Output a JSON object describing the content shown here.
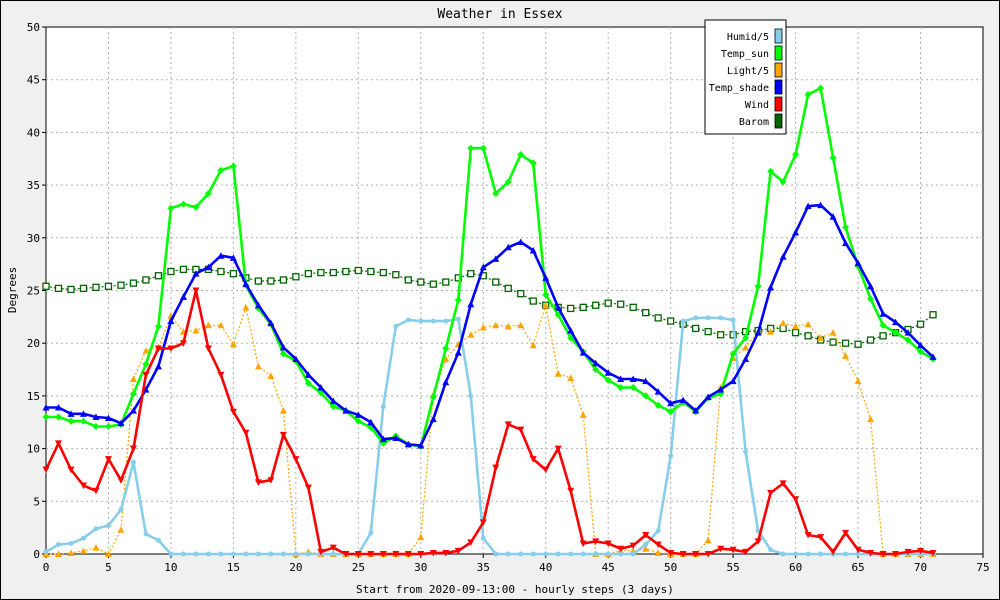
{
  "chart_data": {
    "type": "line",
    "title": "Weather in Essex",
    "xlabel": "Start from 2020-09-13:00 - hourly steps (3 days)",
    "ylabel": "Degrees",
    "xlim": [
      0,
      75
    ],
    "ylim": [
      0,
      50
    ],
    "x_ticks": [
      "0",
      "5",
      "10",
      "15",
      "20",
      "25",
      "30",
      "35",
      "40",
      "45",
      "50",
      "55",
      "60",
      "65",
      "70",
      "75"
    ],
    "y_ticks": [
      "0",
      "5",
      "10",
      "15",
      "20",
      "25",
      "30",
      "35",
      "40",
      "45",
      "50"
    ],
    "grid": true,
    "legend_position": "top-right",
    "series": [
      {
        "name": "Humid/5",
        "color": "#87ceeb",
        "marker": "circle",
        "line": "solid",
        "values": [
          0.2,
          0.9,
          1.0,
          1.5,
          2.4,
          2.7,
          4.2,
          8.7,
          1.9,
          1.3,
          0,
          0,
          0,
          0,
          0,
          0,
          0,
          0,
          0,
          0,
          0,
          0,
          0,
          0,
          0,
          0,
          2.0,
          14.0,
          21.6,
          22.2,
          22.1,
          22.1,
          22.1,
          22.3,
          15.0,
          1.5,
          0,
          0,
          0,
          0,
          0,
          0,
          0,
          0,
          0,
          0,
          0,
          0,
          0.9,
          2.2,
          9.3,
          22.1,
          22.4,
          22.4,
          22.4,
          22.2,
          9.7,
          2.2,
          0.4,
          0,
          0,
          0,
          0,
          0,
          0,
          0,
          0,
          0,
          0,
          0,
          0,
          0
        ]
      },
      {
        "name": "Temp_sun",
        "color": "#00ff00",
        "marker": "diamond",
        "line": "solid",
        "values": [
          13.0,
          13.0,
          12.6,
          12.6,
          12.1,
          12.1,
          12.3,
          15.2,
          18.0,
          21.6,
          32.8,
          33.2,
          32.9,
          34.2,
          36.4,
          36.8,
          25.5,
          23.3,
          21.8,
          19.0,
          18.3,
          16.2,
          15.3,
          14.0,
          13.6,
          12.6,
          12.0,
          10.5,
          11.2,
          10.4,
          10.2,
          14.9,
          19.5,
          24.1,
          38.5,
          38.5,
          34.2,
          35.3,
          37.9,
          37.1,
          24.6,
          22.7,
          20.5,
          19.2,
          17.5,
          16.5,
          15.8,
          15.8,
          15.0,
          14.1,
          13.5,
          14.4,
          13.5,
          14.8,
          15.2,
          19.0,
          20.5,
          25.4,
          36.3,
          35.3,
          37.9,
          43.6,
          44.2,
          37.6,
          31.0,
          27.3,
          24.2,
          21.7,
          21.0,
          20.3,
          19.2,
          18.5
        ]
      },
      {
        "name": "Light/5",
        "color": "#ffa500",
        "marker": "triangle",
        "line": "dotted",
        "values": [
          0,
          0,
          0.1,
          0.3,
          0.6,
          0,
          2.3,
          16.6,
          19.3,
          19.6,
          22.6,
          21.1,
          21.2,
          21.7,
          21.7,
          19.9,
          23.4,
          17.8,
          16.9,
          13.6,
          0,
          0.2,
          0,
          0,
          0,
          0,
          0,
          0,
          0,
          0,
          1.6,
          15.1,
          18.5,
          19.9,
          20.8,
          21.5,
          21.7,
          21.6,
          21.7,
          19.8,
          23.6,
          17.1,
          16.7,
          13.2,
          0,
          0,
          0.3,
          0.3,
          0.5,
          0.1,
          0,
          0,
          0,
          1.3,
          15.8,
          18.6,
          19.6,
          21.1,
          21.1,
          21.9,
          21.6,
          21.8,
          20.5,
          21.0,
          18.8,
          16.4,
          12.8,
          0,
          0,
          0,
          0,
          0
        ]
      },
      {
        "name": "Temp_shade",
        "color": "#0000ff",
        "marker": "triangle",
        "line": "solid",
        "values": [
          13.9,
          13.9,
          13.3,
          13.3,
          13.0,
          12.9,
          12.4,
          13.6,
          15.6,
          17.8,
          22.1,
          24.4,
          26.6,
          27.2,
          28.3,
          28.1,
          25.6,
          23.6,
          21.9,
          19.6,
          18.5,
          17.0,
          15.8,
          14.5,
          13.6,
          13.2,
          12.5,
          10.9,
          11.0,
          10.4,
          10.3,
          12.8,
          16.3,
          19.1,
          23.7,
          27.2,
          28.0,
          29.1,
          29.6,
          28.8,
          26.2,
          23.4,
          21.2,
          19.1,
          18.1,
          17.2,
          16.6,
          16.6,
          16.4,
          15.4,
          14.3,
          14.6,
          13.6,
          14.9,
          15.6,
          16.4,
          18.5,
          21.0,
          25.3,
          28.2,
          30.5,
          33.0,
          33.1,
          32.0,
          29.5,
          27.6,
          25.4,
          22.8,
          22.0,
          21.0,
          19.8,
          18.7
        ]
      },
      {
        "name": "Wind",
        "color": "#ff0000",
        "marker": "triangle-down",
        "line": "solid",
        "values": [
          8.0,
          10.5,
          8.0,
          6.5,
          6.0,
          9.0,
          7.0,
          10.0,
          17.0,
          19.5,
          19.5,
          20.0,
          25.0,
          19.5,
          17.0,
          13.5,
          11.5,
          6.8,
          7.0,
          11.3,
          9.0,
          6.3,
          0.2,
          0.6,
          0,
          0,
          0,
          0,
          0,
          0,
          0,
          0.1,
          0.1,
          0.3,
          1.1,
          3.0,
          8.2,
          12.3,
          11.8,
          9.0,
          8.0,
          10.0,
          6.0,
          1.0,
          1.2,
          1.0,
          0.5,
          0.8,
          1.8,
          0.9,
          0.1,
          0,
          0,
          0,
          0.5,
          0.4,
          0.2,
          1.2,
          5.8,
          6.7,
          5.2,
          1.8,
          1.6,
          0.2,
          2.0,
          0.4,
          0.1,
          0,
          0,
          0.2,
          0.3,
          0.1
        ]
      },
      {
        "name": "Barom",
        "color": "#006400",
        "marker": "square",
        "line": "dotted",
        "values": [
          25.4,
          25.2,
          25.1,
          25.2,
          25.3,
          25.4,
          25.5,
          25.7,
          26.0,
          26.4,
          26.8,
          27.0,
          27.0,
          27.0,
          26.8,
          26.6,
          26.2,
          25.9,
          25.9,
          26.0,
          26.3,
          26.6,
          26.7,
          26.7,
          26.8,
          26.9,
          26.8,
          26.7,
          26.5,
          26.0,
          25.8,
          25.6,
          25.8,
          26.2,
          26.6,
          26.4,
          25.8,
          25.2,
          24.7,
          24.0,
          23.6,
          23.4,
          23.3,
          23.4,
          23.6,
          23.8,
          23.7,
          23.4,
          22.9,
          22.4,
          22.1,
          21.8,
          21.4,
          21.1,
          20.8,
          20.8,
          21.1,
          21.2,
          21.4,
          21.4,
          21.0,
          20.7,
          20.3,
          20.1,
          20.0,
          19.9,
          20.3,
          20.7,
          21.0,
          21.3,
          21.8,
          22.7
        ]
      }
    ]
  }
}
